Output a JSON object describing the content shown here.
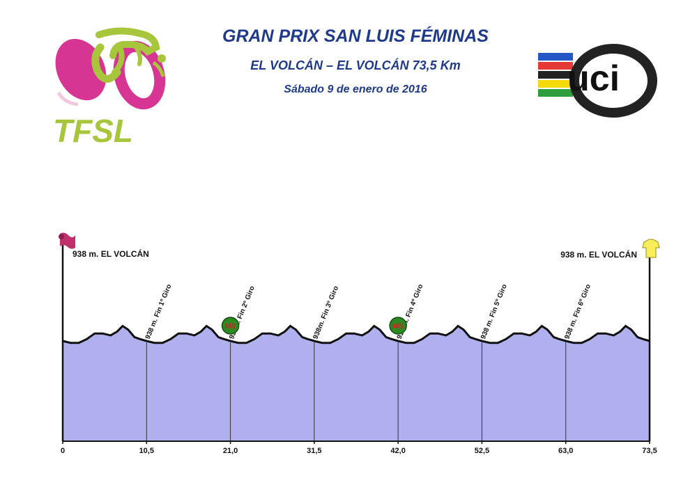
{
  "header": {
    "title": "GRAN PRIX SAN LUIS FÉMINAS",
    "route": "EL VOLCÁN – EL VOLCÁN 73,5 Km",
    "date": "Sábado 9 de enero de 2016"
  },
  "logos": {
    "left_text": "TFSL",
    "right_text": "uci"
  },
  "chart_data": {
    "type": "area",
    "title": "",
    "xlabel": "",
    "ylabel": "",
    "xlim": [
      0,
      73.5
    ],
    "ylim": [
      800,
      1050
    ],
    "x_ticks": [
      0,
      10.5,
      21.0,
      31.5,
      42.0,
      52.5,
      63.0,
      73.5
    ],
    "x_tick_labels": [
      "0",
      "10,5",
      "21,0",
      "31,5",
      "42,0",
      "52,5",
      "63,0",
      "73,5"
    ],
    "fill_color": "#b0b0ee",
    "line_color": "#111111",
    "start_label": "938 m. EL VOLCÁN",
    "finish_label": "938 m. EL VOLCÁN",
    "lap_ends": [
      {
        "km": 10.5,
        "label": "938 m. Fin 1º Giro"
      },
      {
        "km": 21.0,
        "label": "938m. Fin 2º Giro"
      },
      {
        "km": 31.5,
        "label": "938m. Fin 3º Giro"
      },
      {
        "km": 42.0,
        "label": "938 m. Fin 4º Giro"
      },
      {
        "km": 52.5,
        "label": "938 m. Fin 5º Giro"
      },
      {
        "km": 63.0,
        "label": "938 m. Fin 6º Giro"
      }
    ],
    "sprints": [
      {
        "km": 21.0,
        "label": "MS"
      },
      {
        "km": 42.0,
        "label": "MS"
      }
    ],
    "lap_profile": {
      "x": [
        0,
        1,
        2,
        3,
        4,
        5,
        6,
        6.8,
        7.5,
        8.2,
        9,
        9.7,
        10.5
      ],
      "y": [
        938,
        936,
        936,
        940,
        946,
        946,
        944,
        948,
        954,
        950,
        942,
        940,
        938
      ]
    }
  }
}
